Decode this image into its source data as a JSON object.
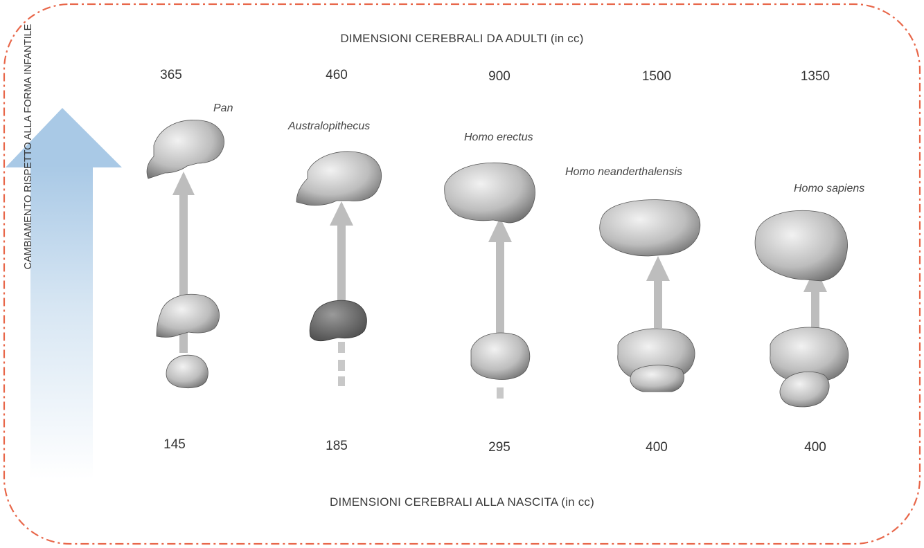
{
  "top_title": "DIMENSIONI CEREBRALI DA ADULTI (in cc)",
  "bottom_title": "DIMENSIONI CEREBRALI ALLA NASCITA (in cc)",
  "side_label": "CAMBIAMENTO RISPETTO ALLA FORMA INFANTILE",
  "colors": {
    "frame": "#e8674a",
    "arrow_gray": "#bdbdbd",
    "side_arrow": "#a9c9e6"
  },
  "species": [
    {
      "name": "Pan",
      "adult_cc": "365",
      "birth_cc": "145"
    },
    {
      "name": "Australopithecus",
      "adult_cc": "460",
      "birth_cc": "185"
    },
    {
      "name": "Homo erectus",
      "adult_cc": "900",
      "birth_cc": "295"
    },
    {
      "name": "Homo neanderthalensis",
      "adult_cc": "1500",
      "birth_cc": "400"
    },
    {
      "name": "Homo sapiens",
      "adult_cc": "1350",
      "birth_cc": "400"
    }
  ]
}
